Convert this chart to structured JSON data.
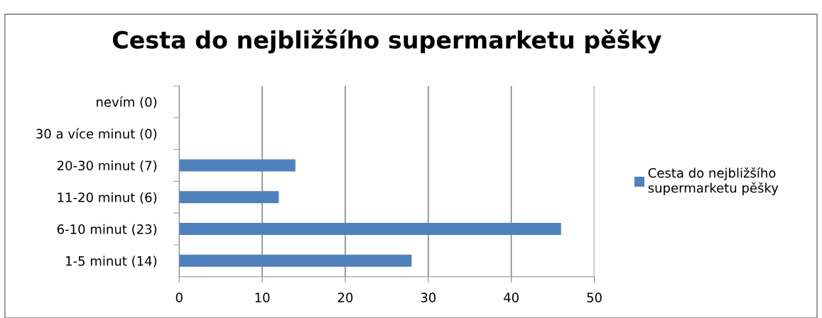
{
  "chart_data": {
    "type": "bar",
    "orientation": "horizontal",
    "title": "Cesta do nejbližšího supermarketu pěšky",
    "categories": [
      "nevím (0)",
      "30 a více minut (0)",
      "20-30 minut (7)",
      "11-20 minut (6)",
      "6-10 minut (23)",
      "1-5 minut (14)"
    ],
    "series": [
      {
        "name": "Cesta do nejbližšího\nsupermarketu pěšky",
        "color": "#4f81bd",
        "values": [
          0,
          0,
          14,
          12,
          46,
          28
        ]
      }
    ],
    "xlim": [
      0,
      50
    ],
    "xticks": [
      0,
      10,
      20,
      30,
      40,
      50
    ],
    "grid": "x",
    "legend": "right"
  }
}
